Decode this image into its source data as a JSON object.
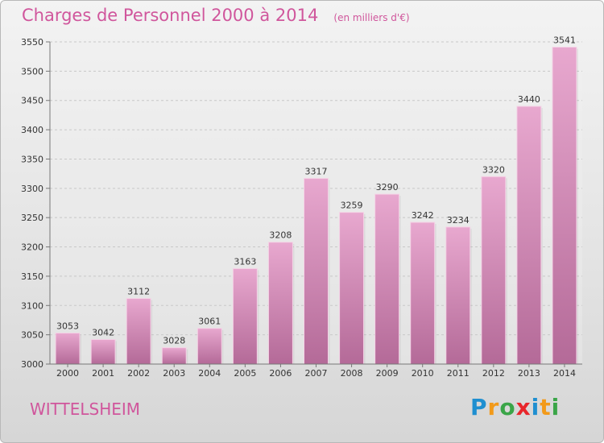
{
  "chart_data": {
    "type": "bar",
    "title": "Charges de Personnel 2000 à 2014",
    "subtitle": "(en milliers d'€)",
    "categories": [
      "2000",
      "2001",
      "2002",
      "2003",
      "2004",
      "2005",
      "2006",
      "2007",
      "2008",
      "2009",
      "2010",
      "2011",
      "2012",
      "2013",
      "2014"
    ],
    "values": [
      3053,
      3042,
      3112,
      3028,
      3061,
      3163,
      3208,
      3317,
      3259,
      3290,
      3242,
      3234,
      3320,
      3440,
      3541
    ],
    "ylim": [
      3000,
      3550
    ],
    "yticks": [
      "3000",
      "3050",
      "3100",
      "3150",
      "3200",
      "3250",
      "3300",
      "3350",
      "3400",
      "3450",
      "3500",
      "3550"
    ],
    "grid": true,
    "bar_color_top": "#e8a8cf",
    "bar_color_bottom": "#b46a98",
    "title_color": "#d0569c"
  },
  "commune": "WITTELSHEIM",
  "logo": {
    "letters": [
      "P",
      "r",
      "o",
      "x",
      "i",
      "t",
      "i"
    ],
    "colors": [
      "#1f8fd0",
      "#f29a1a",
      "#3aa548",
      "#e8262b",
      "#1f8fd0",
      "#f29a1a",
      "#3aa548"
    ]
  }
}
